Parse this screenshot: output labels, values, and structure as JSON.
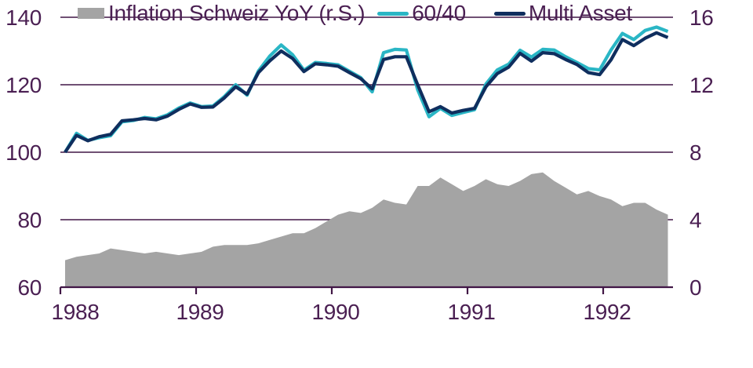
{
  "chart_data": {
    "type": "combo",
    "title": "",
    "xlabel": "",
    "ylabel_left": "",
    "ylabel_right": "",
    "grid": "horizontal",
    "legend_position": "bottom-left",
    "x_tick_labels": [
      "1988",
      "1989",
      "1990",
      "1991",
      "1992"
    ],
    "left_axis": {
      "min": 60,
      "max": 140,
      "ticks": [
        60,
        80,
        100,
        120,
        140
      ],
      "tick_labels": [
        "60",
        "80",
        "100",
        "120",
        "140"
      ]
    },
    "right_axis": {
      "min": 0,
      "max": 16,
      "ticks": [
        0,
        4,
        8,
        12,
        16
      ],
      "tick_labels": [
        "0",
        "4",
        "8",
        "12",
        "16"
      ]
    },
    "x": [
      "1988-01",
      "1988-02",
      "1988-03",
      "1988-04",
      "1988-05",
      "1988-06",
      "1988-07",
      "1988-08",
      "1988-09",
      "1988-10",
      "1988-11",
      "1988-12",
      "1989-01",
      "1989-02",
      "1989-03",
      "1989-04",
      "1989-05",
      "1989-06",
      "1989-07",
      "1989-08",
      "1989-09",
      "1989-10",
      "1989-11",
      "1989-12",
      "1990-01",
      "1990-02",
      "1990-03",
      "1990-04",
      "1990-05",
      "1990-06",
      "1990-07",
      "1990-08",
      "1990-09",
      "1990-10",
      "1990-11",
      "1990-12",
      "1991-01",
      "1991-02",
      "1991-03",
      "1991-04",
      "1991-05",
      "1991-06",
      "1991-07",
      "1991-08",
      "1991-09",
      "1991-10",
      "1991-11",
      "1991-12",
      "1992-01",
      "1992-02",
      "1992-03",
      "1992-04",
      "1992-05",
      "1992-06"
    ],
    "series": [
      {
        "name": "Inflation Schweiz YoY (r.S.)",
        "type": "area",
        "axis": "right",
        "color": "#a4a4a4",
        "values": [
          1.6,
          1.8,
          1.9,
          2.0,
          2.3,
          2.2,
          2.1,
          2.0,
          2.1,
          2.0,
          1.9,
          2.0,
          2.1,
          2.4,
          2.5,
          2.5,
          2.5,
          2.6,
          2.8,
          3.0,
          3.2,
          3.2,
          3.5,
          3.9,
          4.3,
          4.5,
          4.4,
          4.7,
          5.2,
          5.0,
          4.9,
          6.0,
          6.0,
          6.5,
          6.1,
          5.7,
          6.0,
          6.4,
          6.1,
          6.0,
          6.3,
          6.7,
          6.8,
          6.3,
          5.9,
          5.5,
          5.7,
          5.4,
          5.2,
          4.8,
          5.0,
          5.0,
          4.6,
          4.3
        ]
      },
      {
        "name": "60/40",
        "type": "line",
        "axis": "left",
        "color": "#2ab6c5",
        "values": [
          100.0,
          105.6,
          103.5,
          104.3,
          104.9,
          109.0,
          109.4,
          110.3,
          109.9,
          111.1,
          113.1,
          114.6,
          113.5,
          113.7,
          116.5,
          120.0,
          116.9,
          124.1,
          128.5,
          131.8,
          128.9,
          124.3,
          126.6,
          126.3,
          125.9,
          124.0,
          122.1,
          117.9,
          129.5,
          130.5,
          130.3,
          118.5,
          110.5,
          113.0,
          110.9,
          111.8,
          112.6,
          120.2,
          124.4,
          126.1,
          130.2,
          128.2,
          130.5,
          130.3,
          128.3,
          126.6,
          124.8,
          124.4,
          130.3,
          135.2,
          133.4,
          136.1,
          137.1,
          135.8
        ]
      },
      {
        "name": "Multi Asset",
        "type": "line",
        "axis": "left",
        "color": "#0f2e5e",
        "values": [
          100.0,
          105.0,
          103.4,
          104.6,
          105.3,
          109.3,
          109.6,
          110.0,
          109.6,
          110.7,
          112.7,
          114.3,
          113.3,
          113.4,
          116.1,
          119.4,
          117.2,
          123.6,
          127.1,
          130.0,
          127.8,
          123.9,
          126.2,
          125.9,
          125.5,
          123.6,
          121.8,
          118.8,
          127.5,
          128.3,
          128.3,
          120.0,
          112.0,
          113.5,
          111.6,
          112.4,
          113.0,
          119.4,
          123.3,
          125.2,
          129.3,
          127.0,
          129.5,
          129.2,
          127.5,
          126.0,
          123.6,
          123.0,
          127.4,
          133.4,
          131.6,
          133.8,
          135.4,
          134.0
        ]
      }
    ]
  },
  "colors": {
    "axis_text": "#4a1f52",
    "axis_line": "#411746",
    "background": "#ffffff"
  }
}
